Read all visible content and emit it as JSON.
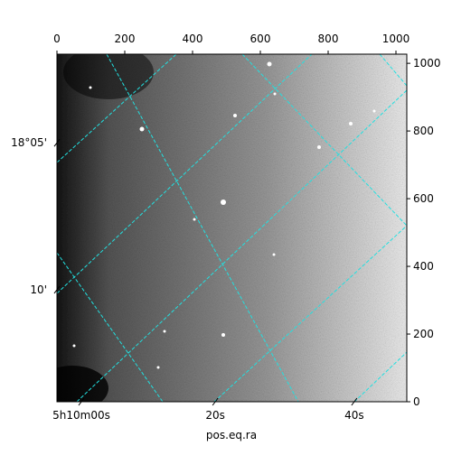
{
  "chart_data": {
    "type": "image",
    "x_label": "pos.eq.ra",
    "xlim": [
      0,
      1032
    ],
    "ylim": [
      0,
      1027
    ],
    "xticks": [
      0,
      200,
      400,
      600,
      800,
      1000
    ],
    "yticks": [
      0,
      200,
      400,
      600,
      800,
      1000
    ],
    "ra_ticks": [
      {
        "value": 72,
        "label": "5h10m00s"
      },
      {
        "value": 467,
        "label": "20s"
      },
      {
        "value": 877,
        "label": "40s"
      }
    ],
    "dec_ticks": [
      {
        "value": 765,
        "label": "18°05'"
      },
      {
        "value": 331,
        "label": "10'"
      }
    ]
  }
}
